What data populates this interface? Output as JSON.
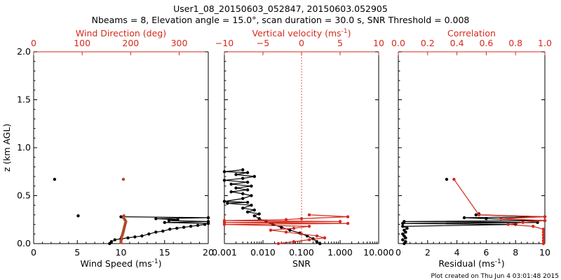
{
  "title_line1": "User1_08_20150603_052847, 20150603.052905",
  "title_line2": "Nbeams = 8, Elevation angle = 15.0°, scan duration = 30.0 s, SNR Threshold = 0.008",
  "footer": "Plot created on Thu Jun  4 03:01:48 2015",
  "colors": {
    "primary": "#000000",
    "secondary": "#d42a1c",
    "secondary_markers": "#b04a2e",
    "background": "#ffffff"
  },
  "chart_data": [
    {
      "id": "panel1",
      "type": "line",
      "xlabel": "Wind Speed (ms",
      "xlabel_sup": "-1",
      "ylabel": "z (km AGL)",
      "xlim": [
        0,
        20
      ],
      "ylim": [
        0,
        2.0
      ],
      "x_ticks": [
        "0",
        "5",
        "10",
        "15",
        "20"
      ],
      "y_ticks": [
        "0.0",
        "0.5",
        "1.0",
        "1.5",
        "2.0"
      ],
      "top_axis": {
        "label": "Wind Direction (deg)",
        "xlim": [
          0,
          360
        ],
        "ticks": [
          "0",
          "100",
          "200",
          "300"
        ]
      },
      "series": [
        {
          "name": "Wind Speed",
          "axis": "bottom",
          "color": "#000000",
          "points": [
            [
              8.7,
              0.0
            ],
            [
              8.9,
              0.02
            ],
            [
              9.3,
              0.04
            ],
            [
              10.0,
              0.05
            ],
            [
              10.8,
              0.06
            ],
            [
              11.6,
              0.07
            ],
            [
              12.4,
              0.08
            ],
            [
              13.2,
              0.1
            ],
            [
              14.0,
              0.12
            ],
            [
              14.8,
              0.13
            ],
            [
              15.6,
              0.15
            ],
            [
              16.4,
              0.16
            ],
            [
              17.2,
              0.17
            ],
            [
              18.0,
              0.18
            ],
            [
              18.8,
              0.19
            ],
            [
              19.6,
              0.2
            ],
            [
              20.0,
              0.21
            ],
            [
              15.0,
              0.22
            ],
            [
              20.0,
              0.23
            ],
            [
              15.5,
              0.24
            ],
            [
              16.5,
              0.25
            ],
            [
              14.0,
              0.26
            ],
            [
              20.0,
              0.27
            ],
            [
              10.0,
              0.28
            ]
          ]
        },
        {
          "name": "Wind Speed (isolated)",
          "axis": "bottom",
          "color": "#000000",
          "points": [
            [
              2.4,
              0.67
            ],
            [
              5.1,
              0.29
            ]
          ]
        },
        {
          "name": "Wind Direction",
          "axis": "top",
          "color": "#b04a2e",
          "points": [
            [
              180,
              0.01
            ],
            [
              180,
              0.03
            ],
            [
              182,
              0.05
            ],
            [
              181,
              0.07
            ],
            [
              183,
              0.09
            ],
            [
              184,
              0.11
            ],
            [
              185,
              0.13
            ],
            [
              186,
              0.15
            ],
            [
              187,
              0.17
            ],
            [
              188,
              0.19
            ],
            [
              189,
              0.21
            ],
            [
              190,
              0.23
            ],
            [
              188,
              0.25
            ],
            [
              185,
              0.27
            ],
            [
              186,
              0.29
            ],
            [
              185,
              0.67
            ]
          ]
        }
      ]
    },
    {
      "id": "panel2",
      "type": "line",
      "xlabel": "SNR",
      "xscale": "log",
      "xlim": [
        0.001,
        10
      ],
      "ylim": [
        0,
        2.0
      ],
      "x_ticks": [
        "0.001",
        "0.010",
        "0.100",
        "1.000",
        "10.000"
      ],
      "top_axis": {
        "label": "Vertical velocity (ms",
        "label_sup": "-1",
        "xlim": [
          -10,
          10
        ],
        "ticks": [
          "−10",
          "−5",
          "0",
          "5",
          "10"
        ],
        "zero_line": 0
      },
      "series": [
        {
          "name": "SNR",
          "axis": "bottom",
          "color": "#000000",
          "points": [
            [
              0.3,
              0.0
            ],
            [
              0.25,
              0.02
            ],
            [
              0.2,
              0.05
            ],
            [
              0.14,
              0.08
            ],
            [
              0.09,
              0.11
            ],
            [
              0.05,
              0.14
            ],
            [
              0.03,
              0.17
            ],
            [
              0.018,
              0.2
            ],
            [
              0.012,
              0.23
            ],
            [
              0.008,
              0.26
            ],
            [
              0.006,
              0.29
            ],
            [
              0.008,
              0.31
            ],
            [
              0.004,
              0.33
            ],
            [
              0.006,
              0.35
            ],
            [
              0.003,
              0.37
            ],
            [
              0.005,
              0.4
            ],
            [
              0.0012,
              0.42
            ],
            [
              0.004,
              0.43
            ],
            [
              0.001,
              0.44
            ],
            [
              0.003,
              0.47
            ],
            [
              0.005,
              0.5
            ],
            [
              0.003,
              0.52
            ],
            [
              0.0015,
              0.54
            ],
            [
              0.004,
              0.56
            ],
            [
              0.002,
              0.58
            ],
            [
              0.005,
              0.6
            ],
            [
              0.0015,
              0.62
            ],
            [
              0.004,
              0.64
            ],
            [
              0.001,
              0.66
            ],
            [
              0.003,
              0.68
            ],
            [
              0.006,
              0.7
            ],
            [
              0.002,
              0.72
            ],
            [
              0.004,
              0.74
            ],
            [
              0.001,
              0.75
            ],
            [
              0.003,
              0.77
            ]
          ]
        },
        {
          "name": "Vertical velocity",
          "axis": "top",
          "color": "#d42a1c",
          "points": [
            [
              -3,
              0.0
            ],
            [
              -1,
              0.02
            ],
            [
              1,
              0.04
            ],
            [
              3,
              0.06
            ],
            [
              2,
              0.08
            ],
            [
              0,
              0.1
            ],
            [
              -2,
              0.12
            ],
            [
              -4,
              0.14
            ],
            [
              -1,
              0.16
            ],
            [
              1,
              0.18
            ],
            [
              -10,
              0.2
            ],
            [
              6,
              0.21
            ],
            [
              -10,
              0.22
            ],
            [
              5,
              0.23
            ],
            [
              -10,
              0.24
            ],
            [
              -2,
              0.25
            ],
            [
              0,
              0.26
            ],
            [
              6,
              0.28
            ],
            [
              1,
              0.3
            ]
          ]
        }
      ]
    },
    {
      "id": "panel3",
      "type": "line",
      "xlabel": "Residual (ms",
      "xlabel_sup": "-1",
      "xlim": [
        0,
        10
      ],
      "ylim": [
        0,
        2.0
      ],
      "x_ticks": [
        "0",
        "2",
        "4",
        "6",
        "8",
        "10"
      ],
      "top_axis": {
        "label": "Correlation",
        "xlim": [
          0,
          1
        ],
        "ticks": [
          "0.0",
          "0.2",
          "0.4",
          "0.6",
          "0.8",
          "1.0"
        ]
      },
      "series": [
        {
          "name": "Residual",
          "axis": "bottom",
          "color": "#000000",
          "points": [
            [
              0.4,
              0.0
            ],
            [
              0.5,
              0.02
            ],
            [
              0.3,
              0.04
            ],
            [
              0.5,
              0.06
            ],
            [
              0.4,
              0.08
            ],
            [
              0.3,
              0.1
            ],
            [
              0.5,
              0.12
            ],
            [
              0.4,
              0.14
            ],
            [
              0.6,
              0.16
            ],
            [
              0.3,
              0.18
            ],
            [
              8.0,
              0.2
            ],
            [
              0.3,
              0.21
            ],
            [
              9.5,
              0.22
            ],
            [
              0.4,
              0.23
            ],
            [
              10.0,
              0.24
            ],
            [
              6.0,
              0.26
            ],
            [
              4.5,
              0.27
            ],
            [
              10.0,
              0.28
            ],
            [
              5.3,
              0.3
            ],
            [
              5.5,
              0.31
            ]
          ]
        },
        {
          "name": "Residual (isolated)",
          "axis": "bottom",
          "color": "#000000",
          "points": [
            [
              3.3,
              0.67
            ]
          ]
        },
        {
          "name": "Correlation",
          "axis": "top",
          "color": "#d42a1c",
          "points": [
            [
              0.99,
              0.0
            ],
            [
              0.99,
              0.03
            ],
            [
              0.99,
              0.06
            ],
            [
              0.99,
              0.09
            ],
            [
              0.99,
              0.12
            ],
            [
              0.99,
              0.15
            ],
            [
              0.92,
              0.18
            ],
            [
              0.75,
              0.2
            ],
            [
              0.85,
              0.22
            ],
            [
              1.0,
              0.24
            ],
            [
              0.7,
              0.26
            ],
            [
              1.0,
              0.28
            ],
            [
              0.55,
              0.3
            ],
            [
              0.38,
              0.67
            ]
          ]
        }
      ]
    }
  ]
}
